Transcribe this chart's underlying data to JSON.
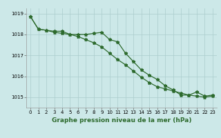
{
  "line1_x": [
    0,
    1,
    2,
    3,
    4,
    5,
    6,
    7,
    8,
    9,
    10,
    11,
    12,
    13,
    14,
    15,
    16,
    17,
    18,
    19,
    20,
    21,
    22,
    23
  ],
  "line1_y": [
    1018.85,
    1018.25,
    1018.2,
    1018.15,
    1018.15,
    1018.0,
    1018.0,
    1018.0,
    1018.05,
    1018.1,
    1017.75,
    1017.65,
    1017.1,
    1016.7,
    1016.3,
    1016.05,
    1015.85,
    1015.55,
    1015.35,
    1015.1,
    1015.1,
    1015.25,
    1015.05,
    1015.1
  ],
  "line2_x": [
    0,
    1,
    2,
    3,
    4,
    5,
    6,
    7,
    8,
    9,
    10,
    11,
    12,
    13,
    14,
    15,
    16,
    17,
    18,
    19,
    20,
    21,
    22,
    23
  ],
  "line2_y": [
    1018.85,
    1018.25,
    1018.2,
    1018.1,
    1018.05,
    1018.0,
    1017.9,
    1017.75,
    1017.6,
    1017.4,
    1017.1,
    1016.8,
    1016.55,
    1016.25,
    1015.95,
    1015.7,
    1015.5,
    1015.4,
    1015.3,
    1015.2,
    1015.1,
    1015.05,
    1015.0,
    1015.05
  ],
  "line_color": "#2d6a2d",
  "bg_color": "#cce8e8",
  "grid_color": "#aacccc",
  "xlabel": "Graphe pression niveau de la mer (hPa)",
  "ylim": [
    1014.5,
    1019.25
  ],
  "xlim": [
    -0.5,
    23.5
  ],
  "yticks": [
    1015,
    1016,
    1017,
    1018,
    1019
  ],
  "xticks": [
    0,
    1,
    2,
    3,
    4,
    5,
    6,
    7,
    8,
    9,
    10,
    11,
    12,
    13,
    14,
    15,
    16,
    17,
    18,
    19,
    20,
    21,
    22,
    23
  ],
  "xlabel_fontsize": 6.5,
  "tick_fontsize": 5.0,
  "marker_size": 3.5,
  "line_width": 0.9
}
